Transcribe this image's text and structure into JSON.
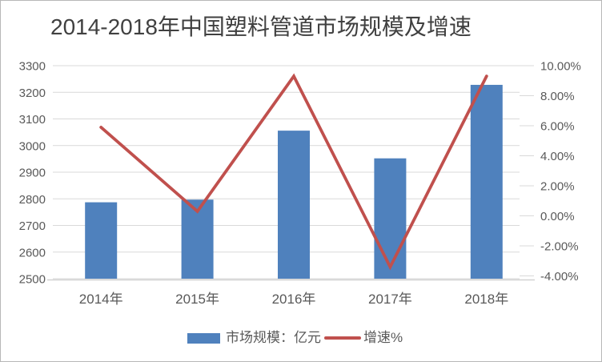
{
  "chart_data": {
    "type": "bar+line",
    "title": "2014-2018年中国塑料管道市场规模及增速",
    "categories": [
      "2014年",
      "2015年",
      "2016年",
      "2017年",
      "2018年"
    ],
    "series": [
      {
        "name": "市场规模：亿元",
        "type": "bar",
        "axis": "left",
        "values": [
          2787,
          2797,
          3056,
          2952,
          3228
        ],
        "color": "#4F81BD"
      },
      {
        "name": "增速%",
        "type": "line",
        "axis": "right",
        "values": [
          5.9,
          0.3,
          9.3,
          -3.4,
          9.3
        ],
        "color": "#C0504D"
      }
    ],
    "left_axis": {
      "min": 2500,
      "max": 3300,
      "step": 100,
      "tick_labels": [
        "3300",
        "3200",
        "3100",
        "3000",
        "2900",
        "2800",
        "2700",
        "2600",
        "2500"
      ]
    },
    "right_axis": {
      "min": -4,
      "max": 10,
      "step": 2,
      "tick_labels": [
        "10.00%",
        "8.00%",
        "6.00%",
        "4.00%",
        "2.00%",
        "0.00%",
        "-2.00%",
        "-4.00%"
      ]
    },
    "grid": true,
    "legend_position": "bottom",
    "colors": {
      "gridline": "#D9D9D9",
      "axis_line": "#D2D2D2",
      "axis_text": "#595959",
      "title_text": "#404040"
    }
  }
}
